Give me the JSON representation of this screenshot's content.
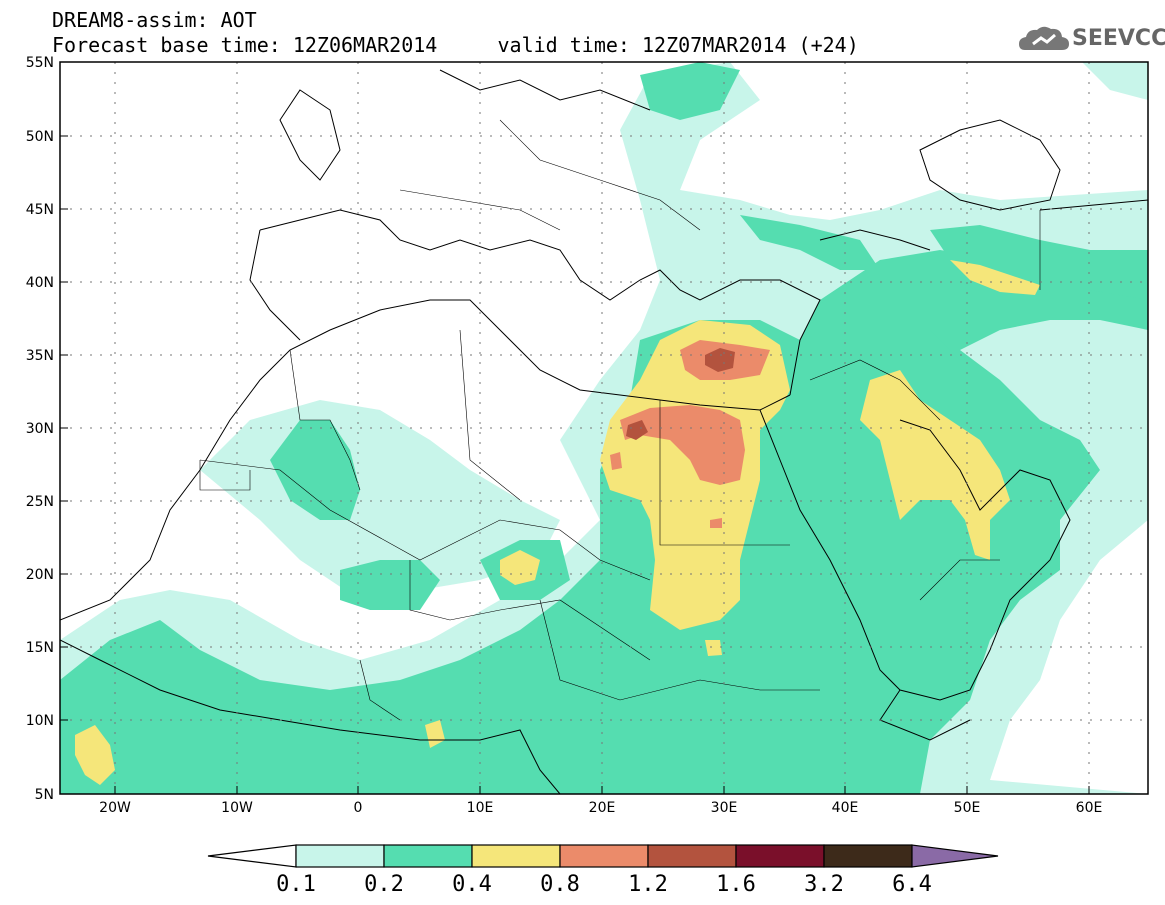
{
  "title": {
    "line1": "DREAM8-assim: AOT",
    "line2": "Forecast base time: 12Z06MAR2014     valid time: 12Z07MAR2014 (+24)"
  },
  "logo": {
    "text": "SEEVCCC",
    "icon": "cloud-icon"
  },
  "axes": {
    "lat_labels": [
      "55N",
      "50N",
      "45N",
      "40N",
      "35N",
      "30N",
      "25N",
      "20N",
      "15N",
      "10N",
      "5N"
    ],
    "lon_labels": [
      "20W",
      "10W",
      "0",
      "10E",
      "20E",
      "30E",
      "40E",
      "50E",
      "60E"
    ]
  },
  "colorbar": {
    "labels": [
      "0.1",
      "0.2",
      "0.4",
      "0.8",
      "1.2",
      "1.6",
      "3.2",
      "6.4"
    ],
    "colors": [
      "#ffffff",
      "#c8f5ea",
      "#55ddb0",
      "#f5e67a",
      "#eb8b6a",
      "#b3533e",
      "#7a0f2a",
      "#3d2a1a",
      "#8a6aa6"
    ]
  },
  "colors": {
    "c01": "#c8f5ea",
    "c02": "#55ddb0",
    "c04": "#f5e67a",
    "c08": "#eb8b6a",
    "c12": "#b3533e"
  }
}
